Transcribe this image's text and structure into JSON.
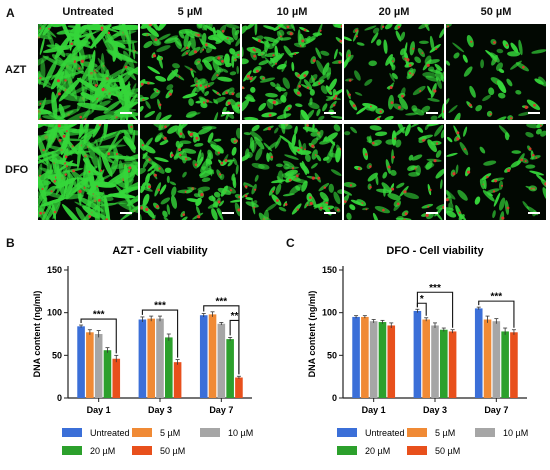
{
  "panel_labels": {
    "a": "A",
    "b": "B",
    "c": "C"
  },
  "micrographs": {
    "columns": [
      "Untreated",
      "5 µM",
      "10 µM",
      "20 µM",
      "50 µM"
    ],
    "rows": [
      "AZT",
      "DFO"
    ],
    "cell_density": [
      [
        1.0,
        0.8,
        0.7,
        0.45,
        0.18
      ],
      [
        1.0,
        0.75,
        0.65,
        0.4,
        0.3
      ]
    ],
    "colors": {
      "cytoskeleton": "#35d63a",
      "nucleus": "#d33a2c",
      "background": "#020802",
      "scale_bar": "#ffffff"
    }
  },
  "chart_data": [
    {
      "type": "bar",
      "title": "AZT - Cell viability",
      "ylabel": "DNA content (ng/ml)",
      "ylim": [
        0,
        150
      ],
      "yticks": [
        0,
        50,
        100,
        150
      ],
      "categories": [
        "Day 1",
        "Day 3",
        "Day 7"
      ],
      "series": [
        {
          "name": "Untreated",
          "color": "#3b6fd8",
          "values": [
            84,
            92,
            97
          ],
          "errors": [
            1.5,
            3,
            2
          ]
        },
        {
          "name": "5 µM",
          "color": "#f08a35",
          "values": [
            77,
            93,
            98
          ],
          "errors": [
            3,
            3,
            3
          ]
        },
        {
          "name": "10 µM",
          "color": "#a6a6a6",
          "values": [
            75,
            93,
            87
          ],
          "errors": [
            4,
            3,
            1.5
          ]
        },
        {
          "name": "20 µM",
          "color": "#2ca02c",
          "values": [
            56,
            71,
            69
          ],
          "errors": [
            3,
            4,
            2
          ]
        },
        {
          "name": "50 µM",
          "color": "#e8501c",
          "values": [
            46,
            42,
            24
          ],
          "errors": [
            4,
            3,
            1.5
          ]
        }
      ],
      "significance": [
        {
          "label": "***",
          "category": 0,
          "from": 0,
          "to": 4
        },
        {
          "label": "***",
          "category": 1,
          "from": 0,
          "to": 4
        },
        {
          "label": "***",
          "category": 2,
          "from": 0,
          "to": 4
        },
        {
          "label": "**",
          "category": 2,
          "from": 3,
          "to": 4
        }
      ],
      "grid": false,
      "legend_position": "bottom"
    },
    {
      "type": "bar",
      "title": "DFO - Cell viability",
      "ylabel": "DNA content (ng/ml)",
      "ylim": [
        0,
        150
      ],
      "yticks": [
        0,
        50,
        100,
        150
      ],
      "categories": [
        "Day 1",
        "Day 3",
        "Day 7"
      ],
      "series": [
        {
          "name": "Untreated",
          "color": "#3b6fd8",
          "values": [
            95,
            102,
            105
          ],
          "errors": [
            1.5,
            2,
            1.5
          ]
        },
        {
          "name": "5 µM",
          "color": "#f08a35",
          "values": [
            95,
            92,
            92
          ],
          "errors": [
            1.5,
            2,
            4
          ]
        },
        {
          "name": "10 µM",
          "color": "#a6a6a6",
          "values": [
            90,
            85,
            90
          ],
          "errors": [
            2,
            3,
            3
          ]
        },
        {
          "name": "20 µM",
          "color": "#2ca02c",
          "values": [
            89,
            80,
            78
          ],
          "errors": [
            2,
            2,
            4
          ]
        },
        {
          "name": "50 µM",
          "color": "#e8501c",
          "values": [
            85,
            78,
            77
          ],
          "errors": [
            3,
            2,
            3
          ]
        }
      ],
      "significance": [
        {
          "label": "*",
          "category": 1,
          "from": 0,
          "to": 1
        },
        {
          "label": "***",
          "category": 1,
          "from": 0,
          "to": 4
        },
        {
          "label": "***",
          "category": 2,
          "from": 0,
          "to": 4
        }
      ],
      "grid": false,
      "legend_position": "bottom"
    }
  ]
}
